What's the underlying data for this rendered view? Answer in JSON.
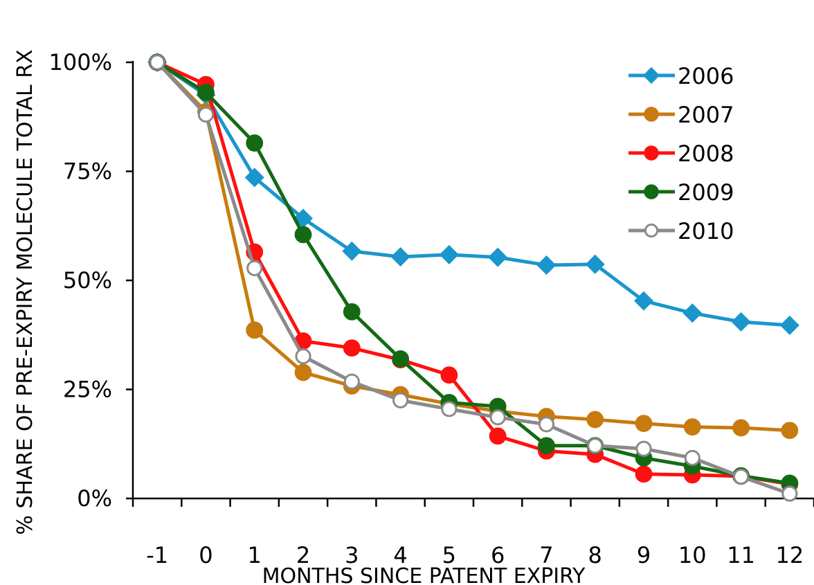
{
  "chart_data": {
    "type": "line",
    "title": "",
    "xlabel": "MONTHS SINCE PATENT EXPIRY",
    "ylabel": "% SHARE OF PRE-EXPIRY MOLECULE TOTAL RX",
    "x": [
      -1,
      0,
      1,
      2,
      3,
      4,
      5,
      6,
      7,
      8,
      9,
      10,
      11,
      12
    ],
    "x_tick_labels": [
      "-1",
      "0",
      "1",
      "2",
      "3",
      "4",
      "5",
      "6",
      "7",
      "8",
      "9",
      "10",
      "11",
      "12"
    ],
    "ylim": [
      0,
      100
    ],
    "y_ticks": [
      0,
      25,
      50,
      75,
      100
    ],
    "y_tick_labels": [
      "0%",
      "25%",
      "50%",
      "75%",
      "100%"
    ],
    "grid": false,
    "legend_position": "top-right",
    "series": [
      {
        "name": "2006",
        "color": "#1a96cc",
        "marker": "diamond",
        "values": [
          100,
          92.5,
          73.6,
          64.2,
          56.7,
          55.4,
          55.9,
          55.3,
          53.5,
          53.7,
          45.3,
          42.5,
          40.5,
          39.7
        ]
      },
      {
        "name": "2007",
        "color": "#c77b0e",
        "marker": "circle",
        "values": [
          100,
          88.7,
          38.6,
          28.9,
          25.8,
          23.8,
          21.7,
          20.0,
          18.8,
          18.1,
          17.2,
          16.4,
          16.2,
          15.6
        ]
      },
      {
        "name": "2008",
        "color": "#ff1010",
        "marker": "circle",
        "values": [
          100,
          94.9,
          56.5,
          36.1,
          34.5,
          31.8,
          28.3,
          14.3,
          10.9,
          10.1,
          5.6,
          5.4,
          5.1,
          3.3
        ]
      },
      {
        "name": "2009",
        "color": "#146a14",
        "marker": "circle",
        "values": [
          100,
          93.1,
          81.5,
          60.5,
          42.8,
          32.0,
          22.0,
          21.1,
          12.1,
          12.1,
          9.3,
          7.4,
          5.2,
          3.5
        ]
      },
      {
        "name": "2010",
        "color": "#8a8a8a",
        "marker": "hollow-circle",
        "values": [
          100,
          88.0,
          52.8,
          32.6,
          26.8,
          22.5,
          20.5,
          18.6,
          17.0,
          12.1,
          11.4,
          9.3,
          5.0,
          1.1
        ]
      }
    ]
  }
}
